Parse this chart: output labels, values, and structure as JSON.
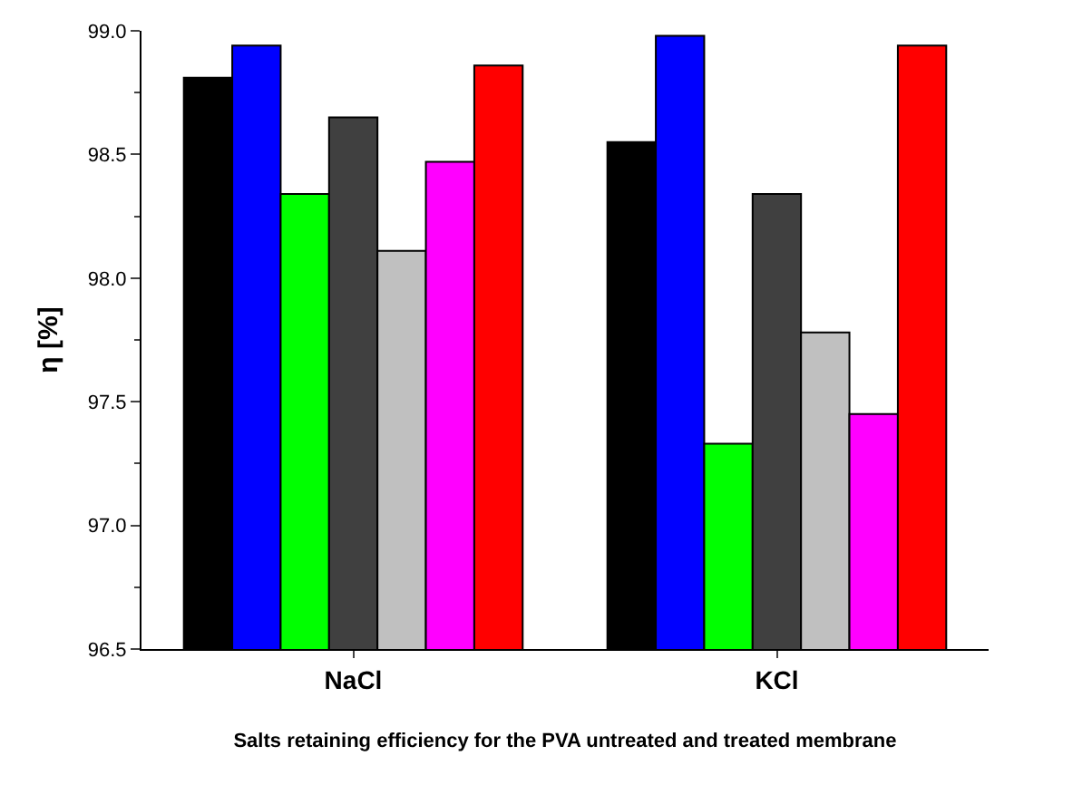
{
  "chart_data": {
    "type": "bar",
    "xlabel": "Salts retaining efficiency for the PVA untreated and treated membrane",
    "ylabel": "η [%]",
    "categories": [
      "NaCl",
      "KCl"
    ],
    "series": [
      {
        "color": "#000000",
        "values": [
          98.81,
          98.55
        ]
      },
      {
        "color": "#0000ff",
        "values": [
          98.94,
          98.98
        ]
      },
      {
        "color": "#00ff00",
        "values": [
          98.34,
          97.33
        ]
      },
      {
        "color": "#404040",
        "values": [
          98.65,
          98.34
        ]
      },
      {
        "color": "#c0c0c0",
        "values": [
          98.11,
          97.78
        ]
      },
      {
        "color": "#ff00ff",
        "values": [
          98.47,
          97.45
        ]
      },
      {
        "color": "#ff0000",
        "values": [
          98.86,
          98.94
        ]
      }
    ],
    "ylim": [
      96.5,
      99.0
    ],
    "yticks": [
      96.5,
      {
        "value": 97,
        "label": "97.0"
      },
      97.5,
      {
        "value": 98,
        "label": "98.0"
      },
      98.5,
      {
        "value": 99,
        "label": "99.0"
      }
    ]
  }
}
